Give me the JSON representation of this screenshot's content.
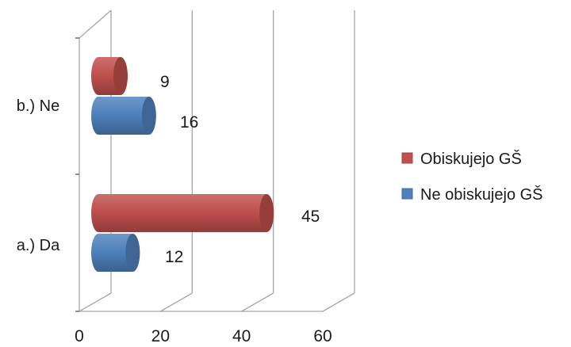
{
  "chart_data": {
    "type": "bar",
    "orientation": "horizontal",
    "style": "3d-cylinder",
    "categories": [
      "a.) Da",
      "b.) Ne"
    ],
    "series": [
      {
        "name": "Ne obiskujejo GŠ",
        "values": [
          12,
          16
        ],
        "color": "#4f81bd"
      },
      {
        "name": "Obiskujejo GŠ",
        "values": [
          45,
          9
        ],
        "color": "#c0504d"
      }
    ],
    "x_ticks": [
      "0",
      "20",
      "40",
      "60"
    ],
    "xlim": [
      0,
      60
    ],
    "grid": true,
    "legend_position": "right",
    "data_labels": true
  }
}
